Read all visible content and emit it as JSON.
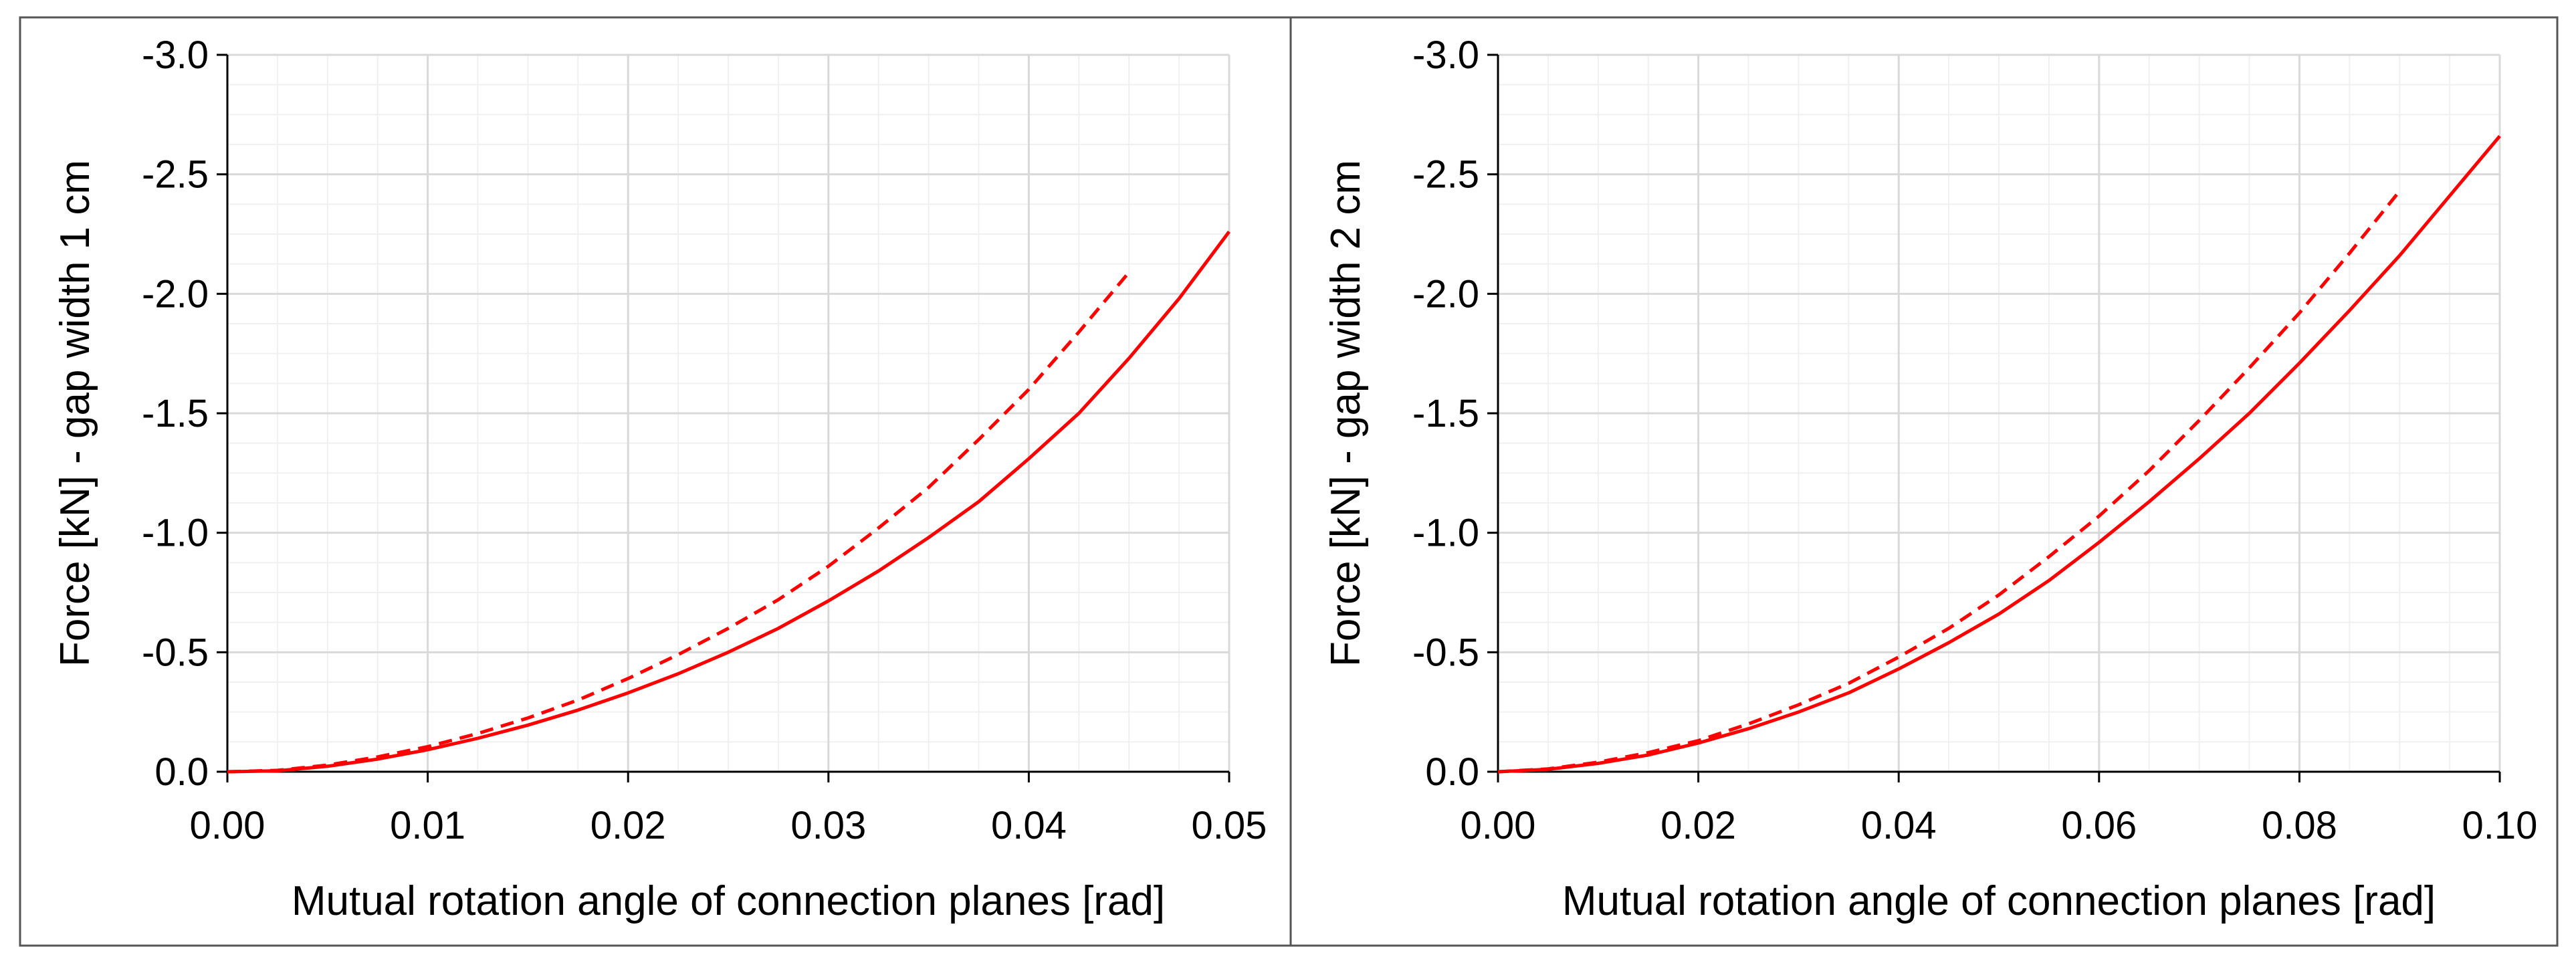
{
  "chart_data": [
    {
      "type": "line",
      "title": "",
      "xlabel": "Mutual rotation angle of connection planes [rad]",
      "ylabel": "Force [kN] - gap width 1 cm",
      "xlim": [
        0,
        0.05
      ],
      "ylim": [
        0,
        -3.0
      ],
      "y_axis_inverted": true,
      "grid": true,
      "legend": "none",
      "x_ticks": [
        "0.00",
        "0.01",
        "0.02",
        "0.03",
        "0.04",
        "0.05"
      ],
      "y_ticks": [
        "0.0",
        "-0.5",
        "-1.0",
        "-1.5",
        "-2.0",
        "-2.5",
        "-3.0"
      ],
      "series": [
        {
          "name": "solid",
          "style": "solid",
          "color": "#ff0000",
          "x": [
            0,
            0.0025,
            0.005,
            0.0075,
            0.01,
            0.0125,
            0.015,
            0.0175,
            0.02,
            0.0225,
            0.025,
            0.0275,
            0.03,
            0.0325,
            0.035,
            0.0375,
            0.04,
            0.0425,
            0.045,
            0.0475,
            0.05
          ],
          "y": [
            0,
            -0.004,
            -0.023,
            -0.053,
            -0.092,
            -0.14,
            -0.195,
            -0.258,
            -0.33,
            -0.41,
            -0.5,
            -0.6,
            -0.715,
            -0.84,
            -0.98,
            -1.13,
            -1.31,
            -1.5,
            -1.73,
            -1.98,
            -2.26
          ]
        },
        {
          "name": "dashed",
          "style": "dashed",
          "color": "#ff0000",
          "x": [
            0,
            0.0025,
            0.005,
            0.0075,
            0.01,
            0.0125,
            0.015,
            0.0175,
            0.02,
            0.0225,
            0.025,
            0.0275,
            0.03,
            0.0325,
            0.035,
            0.0375,
            0.04,
            0.0425,
            0.045
          ],
          "y": [
            0,
            -0.006,
            -0.028,
            -0.062,
            -0.105,
            -0.16,
            -0.225,
            -0.3,
            -0.39,
            -0.49,
            -0.6,
            -0.72,
            -0.86,
            -1.02,
            -1.19,
            -1.39,
            -1.6,
            -1.84,
            -2.09
          ]
        }
      ]
    },
    {
      "type": "line",
      "title": "",
      "xlabel": "Mutual rotation angle of connection planes [rad]",
      "ylabel": "Force [kN] - gap width 2 cm",
      "xlim": [
        0,
        0.1
      ],
      "ylim": [
        0,
        -3.0
      ],
      "y_axis_inverted": true,
      "grid": true,
      "legend": "none",
      "x_ticks": [
        "0.00",
        "0.02",
        "0.04",
        "0.06",
        "0.08",
        "0.10"
      ],
      "y_ticks": [
        "0.0",
        "-0.5",
        "-1.0",
        "-1.5",
        "-2.0",
        "-2.5",
        "-3.0"
      ],
      "series": [
        {
          "name": "solid",
          "style": "solid",
          "color": "#ff0000",
          "x": [
            0,
            0.005,
            0.01,
            0.015,
            0.02,
            0.025,
            0.03,
            0.035,
            0.04,
            0.045,
            0.05,
            0.055,
            0.06,
            0.065,
            0.07,
            0.075,
            0.08,
            0.085,
            0.09,
            0.095,
            0.1
          ],
          "y": [
            0,
            -0.01,
            -0.035,
            -0.07,
            -0.12,
            -0.18,
            -0.25,
            -0.33,
            -0.43,
            -0.54,
            -0.66,
            -0.8,
            -0.96,
            -1.13,
            -1.31,
            -1.5,
            -1.71,
            -1.93,
            -2.16,
            -2.41,
            -2.66
          ]
        },
        {
          "name": "dashed",
          "style": "dashed",
          "color": "#ff0000",
          "x": [
            0,
            0.005,
            0.01,
            0.015,
            0.02,
            0.025,
            0.03,
            0.035,
            0.04,
            0.045,
            0.05,
            0.055,
            0.06,
            0.065,
            0.07,
            0.075,
            0.08,
            0.085,
            0.09
          ],
          "y": [
            0,
            -0.012,
            -0.04,
            -0.08,
            -0.13,
            -0.2,
            -0.28,
            -0.37,
            -0.48,
            -0.6,
            -0.74,
            -0.9,
            -1.07,
            -1.26,
            -1.47,
            -1.69,
            -1.92,
            -2.17,
            -2.43
          ]
        }
      ]
    }
  ]
}
